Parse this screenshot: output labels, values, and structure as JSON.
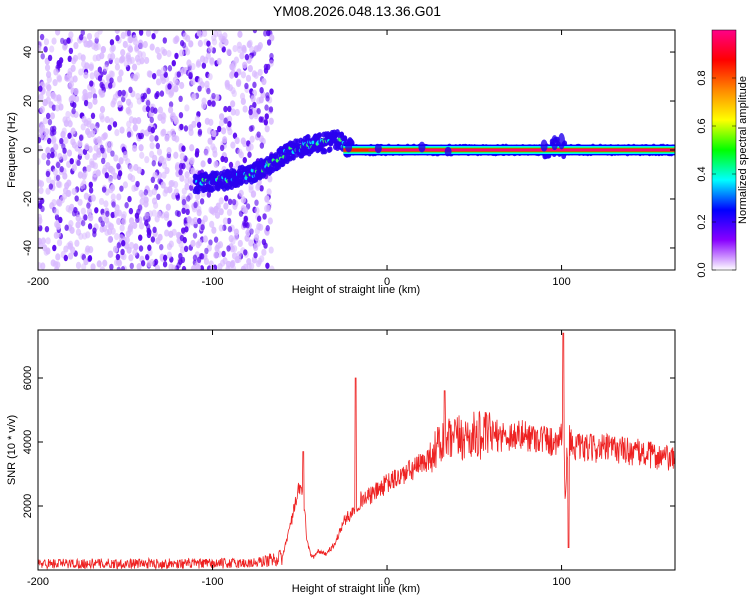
{
  "title": "YM08.2026.048.13.36.G01",
  "colors": {
    "snr_line": "#ee2222",
    "axis": "#000000",
    "spectrum_dots": "#5500ee",
    "spectrum_haze": "#d8b8ff"
  },
  "chart_data": [
    {
      "type": "heatmap",
      "title": "",
      "xlabel": "Height of straight line (km)",
      "ylabel": "Frequency (Hz)",
      "xlim": [
        -200,
        165
      ],
      "ylim": [
        -49,
        49
      ],
      "x_ticks": [
        -200,
        -100,
        0,
        100
      ],
      "y_ticks": [
        -40,
        -20,
        0,
        20,
        40
      ],
      "colorbar": {
        "label": "Normalized spectral amplitude",
        "range": [
          0,
          1
        ],
        "ticks": [
          "0.0",
          "0.2",
          "0.4",
          "0.6",
          "0.8"
        ],
        "ticks_values": [
          0,
          0.2,
          0.4,
          0.6,
          0.8
        ],
        "colors": [
          "#ffffff",
          "#8800ff",
          "#0000ff",
          "#00ffff",
          "#00ff00",
          "#ffff00",
          "#ff8800",
          "#ff0000",
          "#ff0088"
        ]
      },
      "noise_region_x": [
        -200,
        -70
      ],
      "ridge": {
        "x": [
          -110,
          -90,
          -75,
          -65,
          -55,
          -45,
          -35,
          -28,
          -20,
          0,
          40,
          80,
          92,
          98,
          100,
          165
        ],
        "freq": [
          -14,
          -12,
          -9,
          -5,
          0,
          2,
          3,
          4,
          0,
          0,
          0,
          0,
          0,
          2,
          0,
          0
        ]
      }
    },
    {
      "type": "line",
      "title": "",
      "xlabel": "Height of straight line (km)",
      "ylabel": "SNR (10 * v/v)",
      "xlim": [
        -200,
        165
      ],
      "ylim": [
        0,
        7500
      ],
      "x_ticks": [
        -200,
        -100,
        0,
        100
      ],
      "y_ticks": [
        2000,
        4000,
        6000
      ],
      "series": [
        {
          "name": "SNR",
          "x": [
            -200,
            -150,
            -100,
            -75,
            -60,
            -55,
            -50,
            -48,
            -46,
            -44,
            -42,
            -40,
            -35,
            -30,
            -25,
            -20,
            -15,
            -10,
            -5,
            0,
            10,
            20,
            25,
            30,
            35,
            40,
            50,
            60,
            70,
            80,
            90,
            95,
            100,
            101,
            102,
            103,
            104,
            105,
            110,
            120,
            130,
            140,
            150,
            160,
            165
          ],
          "y": [
            200,
            200,
            200,
            220,
            400,
            1500,
            2600,
            2400,
            1000,
            500,
            400,
            600,
            500,
            800,
            1500,
            1800,
            2200,
            2300,
            2500,
            2700,
            3000,
            3300,
            3600,
            3900,
            4000,
            4100,
            4200,
            4200,
            4200,
            4200,
            4100,
            4000,
            4200,
            6000,
            2000,
            3500,
            4200,
            4000,
            3800,
            3800,
            3800,
            3700,
            3600,
            3500,
            3400
          ]
        }
      ],
      "spikes": [
        {
          "x": -48,
          "y": 3700
        },
        {
          "x": -18,
          "y": 6000
        },
        {
          "x": 33,
          "y": 5600
        },
        {
          "x": 101,
          "y": 7400
        },
        {
          "x": 104,
          "y": 700
        }
      ]
    }
  ]
}
